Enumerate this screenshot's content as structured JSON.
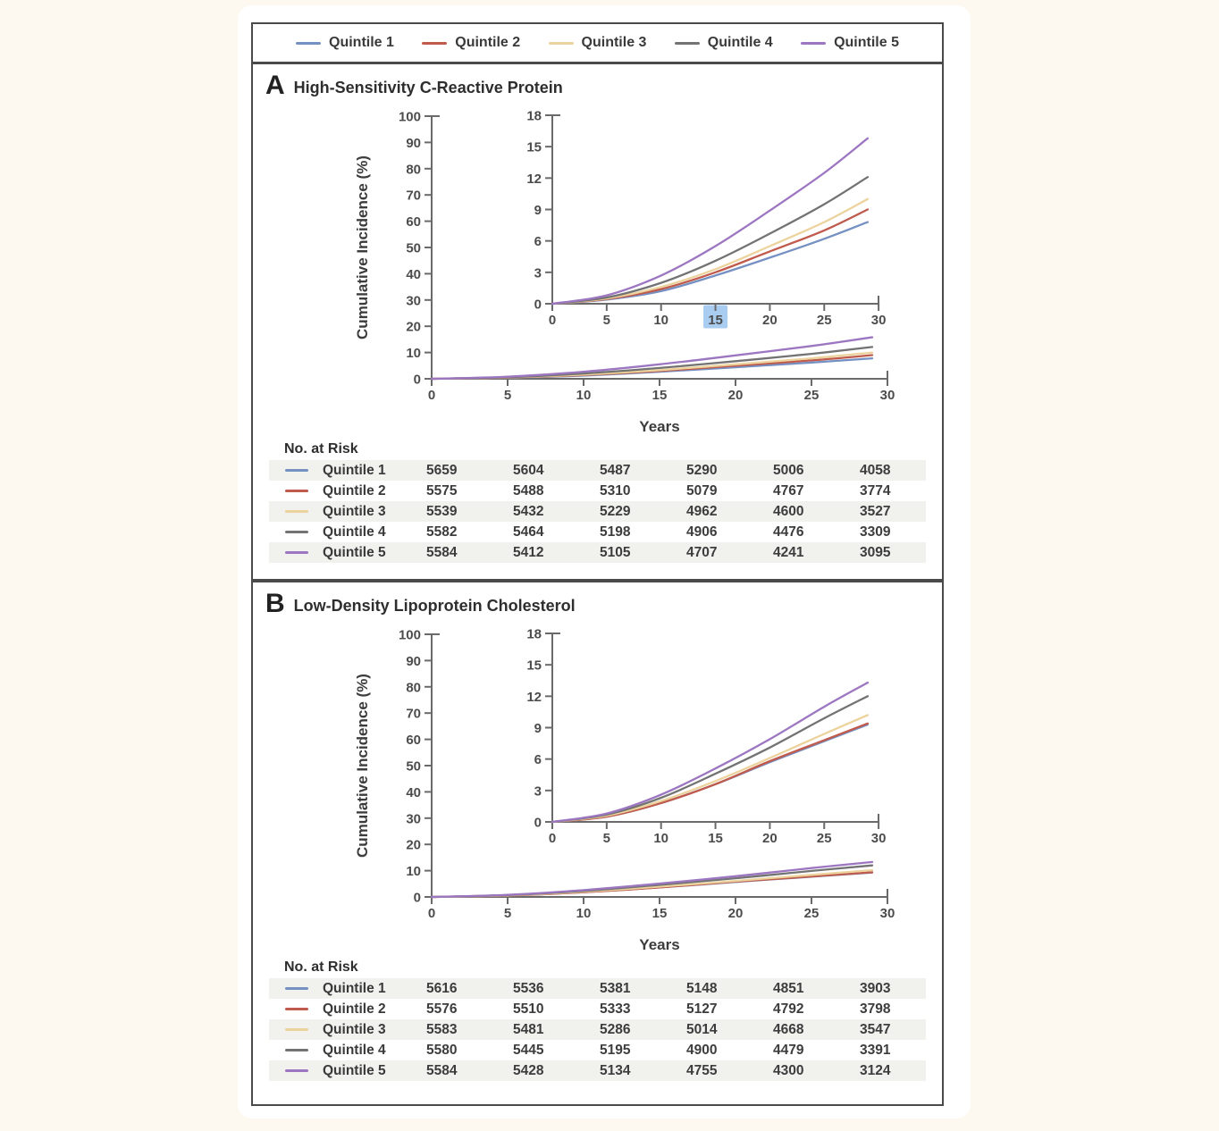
{
  "figure": {
    "legend": [
      {
        "label": "Quintile 1",
        "color": "#7590c2"
      },
      {
        "label": "Quintile 2",
        "color": "#c05a4c"
      },
      {
        "label": "Quintile 3",
        "color": "#ecd39d"
      },
      {
        "label": "Quintile 4",
        "color": "#737373"
      },
      {
        "label": "Quintile 5",
        "color": "#9c76c1"
      }
    ]
  },
  "chart_data": [
    {
      "panel_letter": "A",
      "title": "High-Sensitivity C-Reactive Protein",
      "type": "line",
      "ylabel": "Cumulative Incidence (%)",
      "xlabel": "Years",
      "x": [
        0,
        5,
        10,
        15,
        20,
        25,
        29
      ],
      "series": [
        {
          "name": "Quintile 1",
          "color": "#7590c2",
          "values": [
            0,
            0.4,
            1.2,
            2.7,
            4.4,
            6.2,
            7.8
          ]
        },
        {
          "name": "Quintile 2",
          "color": "#c05a4c",
          "values": [
            0,
            0.45,
            1.4,
            3.0,
            5.0,
            7.0,
            9.0
          ]
        },
        {
          "name": "Quintile 3",
          "color": "#ecd39d",
          "values": [
            0,
            0.5,
            1.6,
            3.3,
            5.5,
            7.8,
            10.0
          ]
        },
        {
          "name": "Quintile 4",
          "color": "#737373",
          "values": [
            0,
            0.6,
            2.0,
            4.1,
            6.7,
            9.5,
            12.1
          ]
        },
        {
          "name": "Quintile 5",
          "color": "#9c76c1",
          "values": [
            0,
            0.8,
            2.7,
            5.5,
            8.9,
            12.5,
            15.8
          ]
        }
      ],
      "main_axis": {
        "ylim": [
          0,
          100
        ],
        "yticks": [
          0,
          10,
          20,
          30,
          40,
          50,
          60,
          70,
          80,
          90,
          100
        ],
        "xlim": [
          0,
          30
        ],
        "xticks": [
          0,
          5,
          10,
          15,
          20,
          25,
          30
        ],
        "grid": false
      },
      "inset_axis": {
        "ylim": [
          0,
          18
        ],
        "yticks": [
          0,
          3,
          6,
          9,
          12,
          15,
          18
        ],
        "xlim": [
          0,
          30
        ],
        "xticks": [
          0,
          5,
          10,
          15,
          20,
          25,
          30
        ],
        "highlighted_xtick": 15,
        "highlight_color": "#a9cdf1",
        "highlight_text_color": "#5d7aa0"
      },
      "risk_table": {
        "label": "No. at Risk",
        "rows": [
          {
            "name": "Quintile 1",
            "color": "#7590c2",
            "values": [
              5659,
              5604,
              5487,
              5290,
              5006,
              4058
            ]
          },
          {
            "name": "Quintile 2",
            "color": "#c05a4c",
            "values": [
              5575,
              5488,
              5310,
              5079,
              4767,
              3774
            ]
          },
          {
            "name": "Quintile 3",
            "color": "#ecd39d",
            "values": [
              5539,
              5432,
              5229,
              4962,
              4600,
              3527
            ]
          },
          {
            "name": "Quintile 4",
            "color": "#737373",
            "values": [
              5582,
              5464,
              5198,
              4906,
              4476,
              3309
            ]
          },
          {
            "name": "Quintile 5",
            "color": "#9c76c1",
            "values": [
              5584,
              5412,
              5105,
              4707,
              4241,
              3095
            ]
          }
        ]
      }
    },
    {
      "panel_letter": "B",
      "title": "Low-Density Lipoprotein Cholesterol",
      "type": "line",
      "ylabel": "Cumulative Incidence (%)",
      "xlabel": "Years",
      "x": [
        0,
        5,
        10,
        15,
        20,
        25,
        29
      ],
      "series": [
        {
          "name": "Quintile 1",
          "color": "#7590c2",
          "values": [
            0,
            0.5,
            1.8,
            3.6,
            5.7,
            7.7,
            9.3
          ]
        },
        {
          "name": "Quintile 2",
          "color": "#c05a4c",
          "values": [
            0,
            0.5,
            1.8,
            3.6,
            5.8,
            7.8,
            9.4
          ]
        },
        {
          "name": "Quintile 3",
          "color": "#ecd39d",
          "values": [
            0,
            0.6,
            2.0,
            3.9,
            6.1,
            8.4,
            10.2
          ]
        },
        {
          "name": "Quintile 4",
          "color": "#737373",
          "values": [
            0,
            0.7,
            2.3,
            4.6,
            7.1,
            9.9,
            12.0
          ]
        },
        {
          "name": "Quintile 5",
          "color": "#9c76c1",
          "values": [
            0,
            0.8,
            2.6,
            5.1,
            7.9,
            11.0,
            13.3
          ]
        }
      ],
      "main_axis": {
        "ylim": [
          0,
          100
        ],
        "yticks": [
          0,
          10,
          20,
          30,
          40,
          50,
          60,
          70,
          80,
          90,
          100
        ],
        "xlim": [
          0,
          30
        ],
        "xticks": [
          0,
          5,
          10,
          15,
          20,
          25,
          30
        ],
        "grid": false
      },
      "inset_axis": {
        "ylim": [
          0,
          18
        ],
        "yticks": [
          0,
          3,
          6,
          9,
          12,
          15,
          18
        ],
        "xlim": [
          0,
          30
        ],
        "xticks": [
          0,
          5,
          10,
          15,
          20,
          25,
          30
        ],
        "highlighted_xtick": null,
        "highlight_color": "#a9cdf1",
        "highlight_text_color": "#5d7aa0"
      },
      "risk_table": {
        "label": "No. at Risk",
        "rows": [
          {
            "name": "Quintile 1",
            "color": "#7590c2",
            "values": [
              5616,
              5536,
              5381,
              5148,
              4851,
              3903
            ]
          },
          {
            "name": "Quintile 2",
            "color": "#c05a4c",
            "values": [
              5576,
              5510,
              5333,
              5127,
              4792,
              3798
            ]
          },
          {
            "name": "Quintile 3",
            "color": "#ecd39d",
            "values": [
              5583,
              5481,
              5286,
              5014,
              4668,
              3547
            ]
          },
          {
            "name": "Quintile 4",
            "color": "#737373",
            "values": [
              5580,
              5445,
              5195,
              4900,
              4479,
              3391
            ]
          },
          {
            "name": "Quintile 5",
            "color": "#9c76c1",
            "values": [
              5584,
              5428,
              5134,
              4755,
              4300,
              3124
            ]
          }
        ]
      }
    }
  ]
}
